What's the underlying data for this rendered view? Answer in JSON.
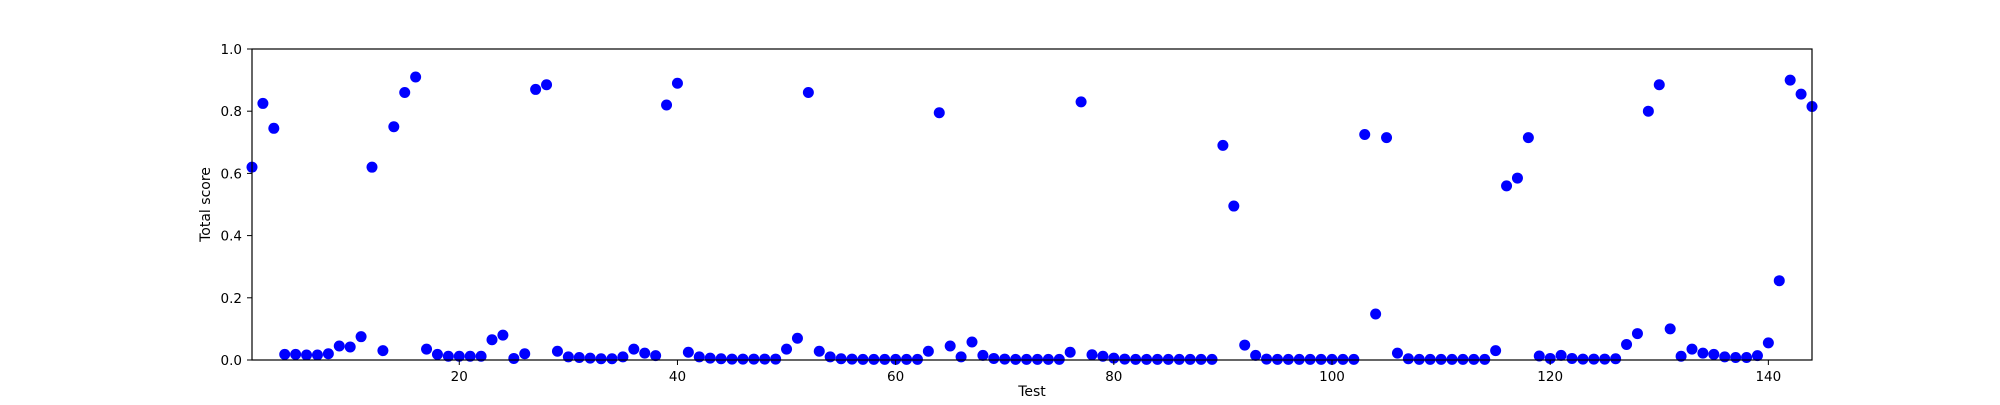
{
  "chart_data": {
    "type": "scatter",
    "title": "",
    "xlabel": "Test",
    "ylabel": "Total score",
    "xlim": [
      1,
      144
    ],
    "ylim": [
      0,
      1
    ],
    "xticks": [
      20,
      40,
      60,
      80,
      100,
      120,
      140
    ],
    "yticks": [
      0.0,
      0.2,
      0.4,
      0.6,
      0.8,
      1.0
    ],
    "ytick_labels": [
      "0.0",
      "0.2",
      "0.4",
      "0.6",
      "0.8",
      "1.0"
    ],
    "grid": false,
    "marker_color": "#0000ff",
    "series": [
      {
        "x": [
          1,
          2,
          3,
          4,
          5,
          6,
          7,
          8,
          9,
          10,
          11,
          12,
          13,
          14,
          15,
          16,
          17,
          18,
          19,
          20,
          21,
          22,
          23,
          24,
          25,
          26,
          27,
          28,
          29,
          30,
          31,
          32,
          33,
          34,
          35,
          36,
          37,
          38,
          39,
          40,
          41,
          42,
          43,
          44,
          45,
          46,
          47,
          48,
          49,
          50,
          51,
          52,
          53,
          54,
          55,
          56,
          57,
          58,
          59,
          60,
          61,
          62,
          63,
          64,
          65,
          66,
          67,
          68,
          69,
          70,
          71,
          72,
          73,
          74,
          75,
          76,
          77,
          78,
          79,
          80,
          81,
          82,
          83,
          84,
          85,
          86,
          87,
          88,
          89,
          90,
          91,
          92,
          93,
          94,
          95,
          96,
          97,
          98,
          99,
          100,
          101,
          102,
          103,
          104,
          105,
          106,
          107,
          108,
          109,
          110,
          111,
          112,
          113,
          114,
          115,
          116,
          117,
          118,
          119,
          120,
          121,
          122,
          123,
          124,
          125,
          126,
          127,
          128,
          129,
          130,
          131,
          132,
          133,
          134,
          135,
          136,
          137,
          138,
          139,
          140,
          141,
          142,
          143,
          144
        ],
        "y": [
          0.62,
          0.825,
          0.745,
          0.018,
          0.018,
          0.016,
          0.016,
          0.02,
          0.045,
          0.042,
          0.075,
          0.62,
          0.03,
          0.75,
          0.86,
          0.91,
          0.035,
          0.018,
          0.012,
          0.012,
          0.012,
          0.012,
          0.065,
          0.08,
          0.005,
          0.02,
          0.87,
          0.885,
          0.028,
          0.01,
          0.008,
          0.006,
          0.004,
          0.004,
          0.01,
          0.035,
          0.022,
          0.014,
          0.82,
          0.89,
          0.025,
          0.01,
          0.006,
          0.004,
          0.003,
          0.003,
          0.003,
          0.003,
          0.003,
          0.035,
          0.07,
          0.86,
          0.028,
          0.01,
          0.004,
          0.003,
          0.002,
          0.002,
          0.002,
          0.002,
          0.002,
          0.002,
          0.028,
          0.795,
          0.045,
          0.01,
          0.058,
          0.015,
          0.005,
          0.003,
          0.002,
          0.002,
          0.002,
          0.002,
          0.002,
          0.025,
          0.83,
          0.017,
          0.012,
          0.006,
          0.003,
          0.002,
          0.002,
          0.002,
          0.002,
          0.002,
          0.002,
          0.002,
          0.002,
          0.69,
          0.495,
          0.048,
          0.015,
          0.003,
          0.002,
          0.002,
          0.002,
          0.002,
          0.002,
          0.002,
          0.002,
          0.002,
          0.725,
          0.148,
          0.715,
          0.022,
          0.004,
          0.002,
          0.002,
          0.002,
          0.002,
          0.002,
          0.002,
          0.002,
          0.03,
          0.56,
          0.585,
          0.715,
          0.013,
          0.005,
          0.015,
          0.005,
          0.003,
          0.003,
          0.003,
          0.004,
          0.05,
          0.085,
          0.8,
          0.885,
          0.1,
          0.012,
          0.035,
          0.022,
          0.018,
          0.01,
          0.008,
          0.008,
          0.014,
          0.055,
          0.255,
          0.9,
          0.855,
          0.815
        ]
      }
    ]
  }
}
